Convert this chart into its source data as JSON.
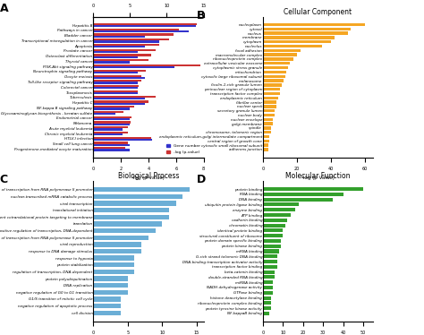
{
  "panel_A": {
    "top_xlabel": "Target Gene Number",
    "bottom_xlabel": "-log (p-value)",
    "categories": [
      "Hepatitis B",
      "Pathways in cancer",
      "Bladder cancer",
      "Transcriptional misregulation in cancer",
      "Apoptosis",
      "Prostate cancer",
      "Osteoclast differentiation",
      "Thyroid cancer",
      "PI3K-Akt signaling pathway",
      "Neurotrophin signaling pathway",
      "Oocyte meiosis",
      "Toll-like receptor signaling pathway",
      "Colorectal cancer",
      "Toxoplasmosis",
      "Tuberculosis",
      "Hepatitis C",
      "NF-kappa B signaling pathway",
      "Glycosaminoglycan biosynthesis - keratan sulfate",
      "Endometrial cancer",
      "Melanoma",
      "Acute myeloid leukemia",
      "Chronic myeloid leukemia",
      "HTLV-I infection",
      "Small cell lung cancer",
      "Progesterone-mediated oocyte maturation"
    ],
    "gene_number": [
      14,
      13,
      7,
      9,
      7,
      6,
      6,
      5,
      11,
      6,
      7,
      6,
      6,
      6,
      7,
      7,
      5,
      3,
      5,
      5,
      4,
      4,
      8,
      5,
      5
    ],
    "log_pvalue": [
      7.5,
      6.2,
      5.8,
      5.5,
      4.8,
      4.5,
      4.2,
      4.0,
      7.8,
      3.8,
      3.5,
      3.5,
      3.3,
      3.2,
      4.5,
      4.0,
      3.0,
      2.2,
      2.8,
      2.7,
      2.5,
      2.5,
      4.2,
      2.5,
      2.3
    ],
    "bar_color_gene": "#3333cc",
    "bar_color_pval": "#cc3333",
    "legend_gene": "Gene number",
    "legend_pval": "-log (p-value)",
    "gene_xlim": [
      0,
      15
    ],
    "pval_xlim": [
      0,
      8
    ],
    "gene_xticks": [
      0,
      5,
      10,
      15
    ],
    "pval_xticks": [
      0,
      2,
      4,
      6,
      8
    ]
  },
  "panel_B": {
    "title": "Cellular Component",
    "xlabel": "-log (p Value)",
    "categories": [
      "nucleoplasm",
      "cytosol",
      "nucleus",
      "membrane",
      "cytoplasm",
      "nucleolus",
      "focal adhesion",
      "macromolecular complex",
      "ribonucleoprotein complex",
      "extracellular vesicular exosome",
      "cytoplasmic stress granule",
      "mitochondrion",
      "cytosolic large ribosomal subunit",
      "melanosome",
      "ficolin-1-rich granule lumen",
      "perinuclear region of cytoplasm",
      "transcription factor complex",
      "endoplasmic reticulum",
      "fibrillar center",
      "nuclear speck",
      "secretory granule lumen",
      "nuclear body",
      "nuclear envelope",
      "golgi membrane",
      "spindle",
      "chromosome, telomeric region",
      "endoplasmic reticulum-golgi intermediate compartment",
      "central region of growth cone",
      "cytosolic small ribosomal subunit",
      "adherens junction"
    ],
    "values": [
      60,
      52,
      50,
      42,
      40,
      35,
      22,
      20,
      18,
      16,
      15,
      14,
      13,
      12,
      11,
      10,
      10,
      9,
      8,
      8,
      7,
      7,
      6,
      6,
      5,
      5,
      4,
      4,
      3,
      3
    ],
    "bar_color": "#f5a623",
    "xlim": [
      0,
      65
    ],
    "xticks": [
      0,
      20,
      40,
      60
    ]
  },
  "panel_C": {
    "title": "Biological Process",
    "xlabel": "-log (p Value)",
    "categories": [
      "positive regulation of transcription from RNA polymerase II promoter",
      "nuclear-transcribed mRNA catabolic process",
      "viral transcription",
      "translational initiation",
      "SRP-dependent cotranslational protein targeting to membrane",
      "translation",
      "positive regulation of transcription, DNA-dependent",
      "negative regulation of transcription from RNA polymerase II promoter",
      "viral reproduction",
      "response to DNA damage stimulus",
      "response to hypoxia",
      "protein stabilization",
      "regulation of transcription, DNA-dependent",
      "protein polyubiquitination",
      "DNA replication",
      "negative regulation of G0 to G1 transition",
      "G1/S transition of mitotic cell cycle",
      "negative regulation of apoptotic process",
      "cell division"
    ],
    "values": [
      14,
      13,
      12,
      11,
      11,
      10,
      9,
      8,
      7,
      7,
      6,
      6,
      6,
      5,
      5,
      5,
      4,
      4,
      4
    ],
    "bar_color": "#6baed6",
    "xlim": [
      0,
      16
    ],
    "xticks": [
      0,
      5,
      10,
      15
    ]
  },
  "panel_D": {
    "title": "Molecular Function",
    "xlabel": "-log (p Value)",
    "categories": [
      "protein binding",
      "RNA binding",
      "DNA binding",
      "ubiquitin protein ligase binding",
      "enzyme binding",
      "ATP binding",
      "cadherin binding",
      "chromatin binding",
      "identical protein binding",
      "structural constituent of ribosome",
      "protein domain specific binding",
      "protein kinase binding",
      "mRNA binding",
      "G-rich strand telomeric DNA binding",
      "DNA-binding transcription activator activity",
      "transcription factor binding",
      "beta-catenin binding",
      "double-stranded RNA binding",
      "miRNA binding",
      "NADH dehydrogenase activity",
      "GTPase binding",
      "histone deacetylase binding",
      "ribonucleoprotein complex binding",
      "protein tyrosine kinase activity",
      "NF-kappaB binding"
    ],
    "values": [
      50,
      40,
      35,
      18,
      16,
      14,
      12,
      11,
      10,
      10,
      9,
      9,
      8,
      7,
      7,
      7,
      6,
      6,
      5,
      5,
      5,
      4,
      4,
      4,
      3
    ],
    "bar_color": "#33a02c",
    "xlim": [
      0,
      55
    ],
    "xticks": [
      0,
      10,
      20,
      30,
      40,
      50
    ]
  },
  "label_fontsize": 9,
  "title_fontsize": 5.5,
  "tick_fontsize": 3.5,
  "ylabel_fontsize": 3.0,
  "xlabel_fontsize": 4.0
}
